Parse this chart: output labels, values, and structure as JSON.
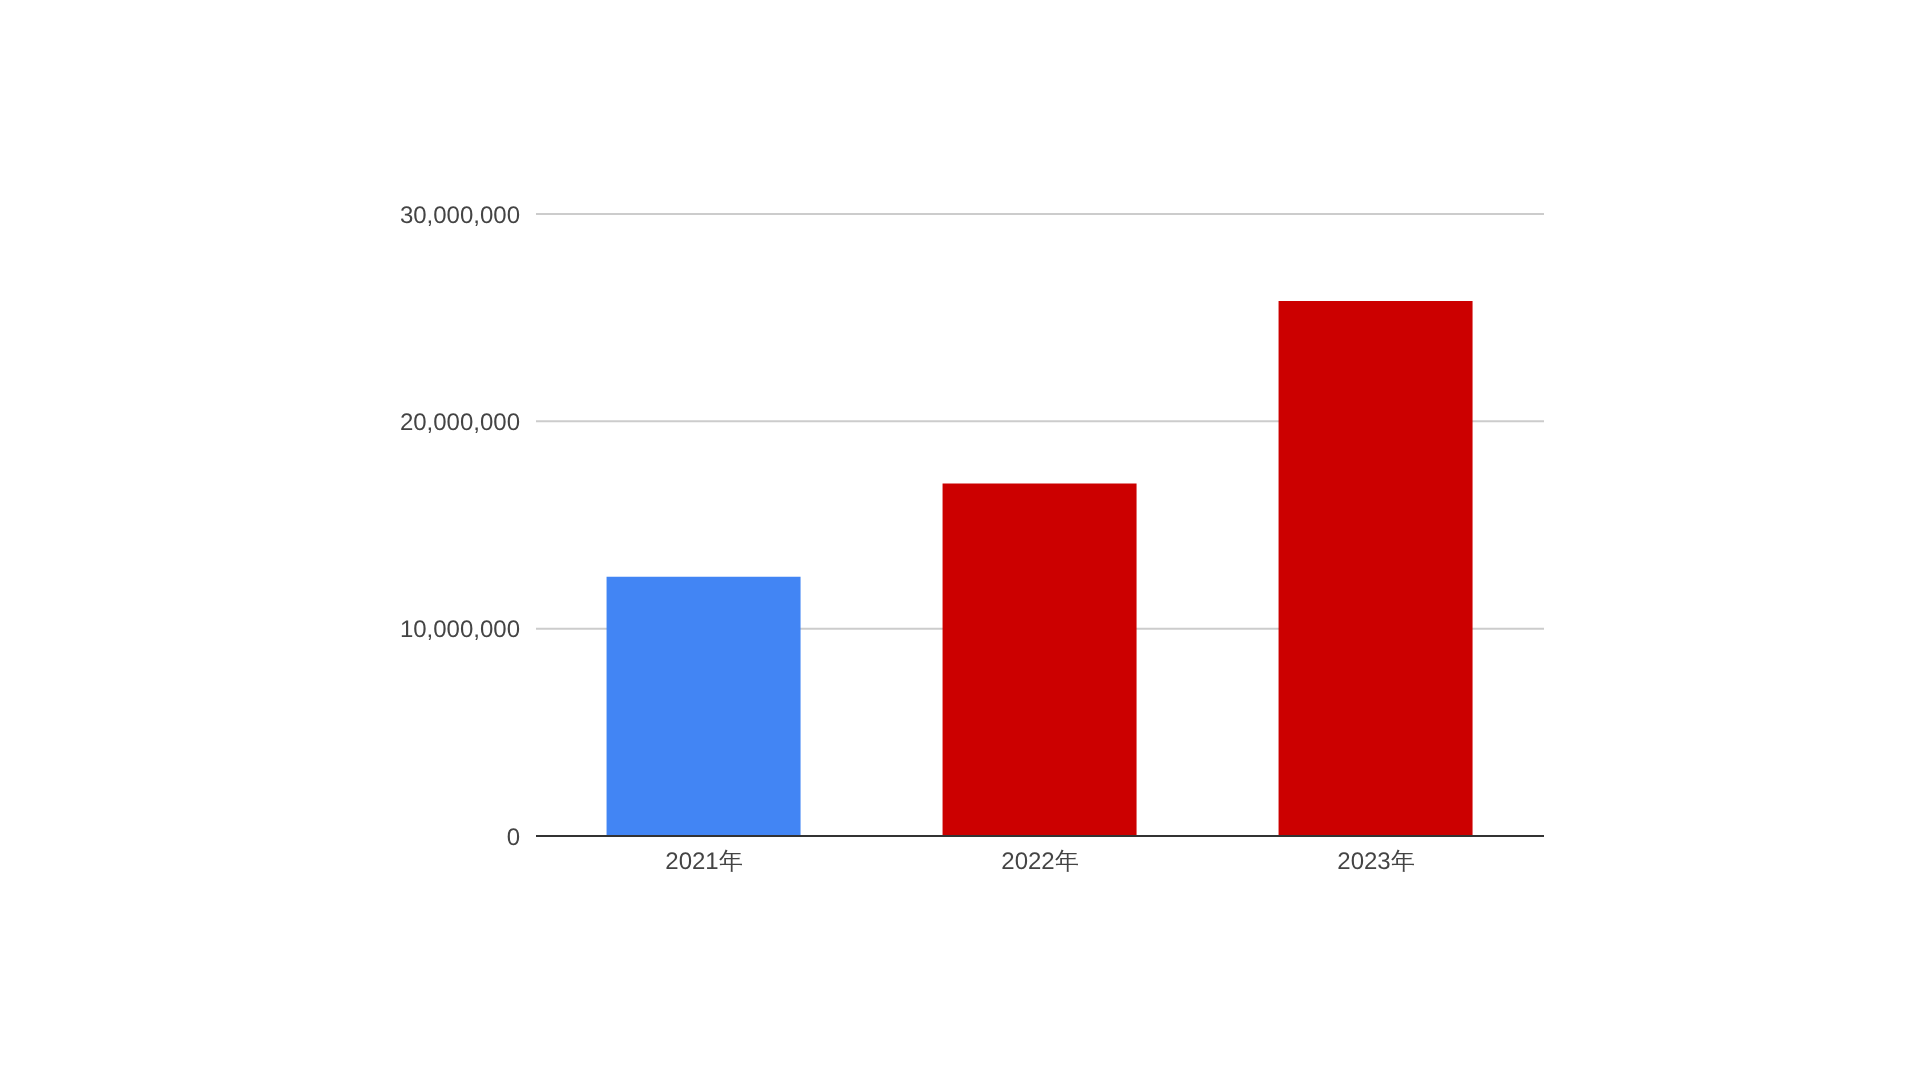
{
  "chart_data": {
    "type": "bar",
    "categories": [
      "2021年",
      "2022年",
      "2023年"
    ],
    "values": [
      12500000,
      17000000,
      25800000
    ],
    "colors": [
      "#4285f4",
      "#cc0000",
      "#cc0000"
    ],
    "ylim": [
      0,
      30000000
    ],
    "yticks": [
      0,
      {
        "value": 10000000,
        "label": "10,000,000"
      },
      {
        "value": 20000000,
        "label": "20,000,000"
      },
      {
        "value": 30000000,
        "label": "30,000,000"
      }
    ],
    "grid": "y"
  }
}
